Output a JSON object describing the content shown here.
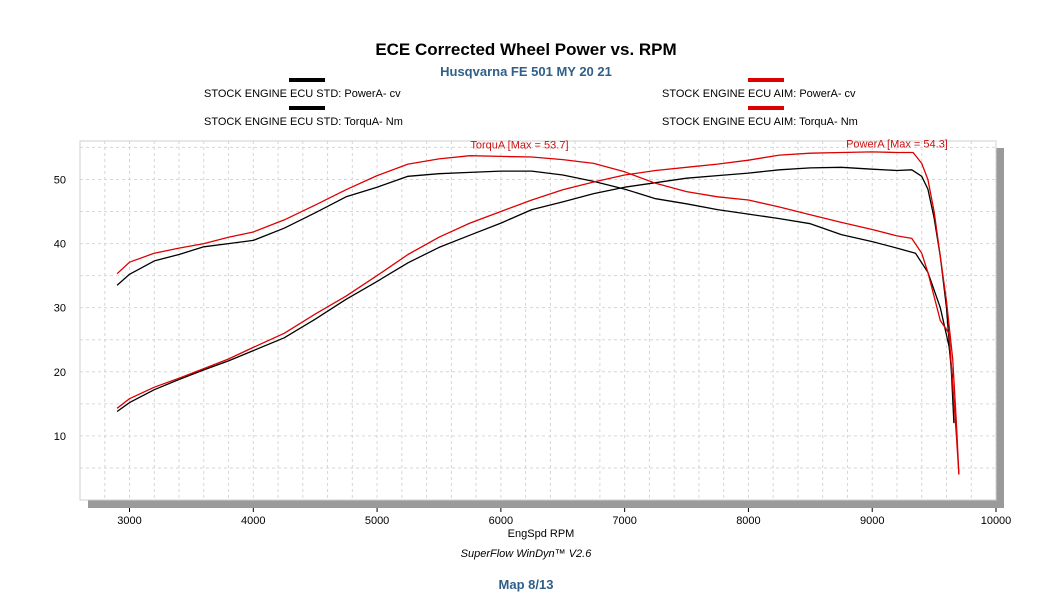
{
  "chart_data": {
    "type": "line",
    "title": "ECE Corrected Wheel Power vs. RPM",
    "subtitle": "Husqvarna FE 501 MY 20 21",
    "xlabel": "EngSpd  RPM",
    "ylabel": "",
    "xlim": [
      2600,
      10000
    ],
    "ylim": [
      0,
      56
    ],
    "x_ticks": [
      "3000",
      "4000",
      "5000",
      "6000",
      "7000",
      "8000",
      "9000",
      "10000"
    ],
    "y_ticks": [
      "10",
      "20",
      "30",
      "40",
      "50"
    ],
    "grid": true,
    "footer": "SuperFlow WinDyn™ V2.6",
    "map_label": "Map 8/13",
    "legend": [
      {
        "label": "STOCK ENGINE ECU STD: PowerA- cv",
        "color": "#000000"
      },
      {
        "label": "STOCK ENGINE ECU STD: TorquA- Nm",
        "color": "#000000"
      },
      {
        "label": "STOCK ENGINE ECU AIM: PowerA- cv",
        "color": "#dd0000"
      },
      {
        "label": "STOCK ENGINE ECU AIM: TorquA- Nm",
        "color": "#dd0000"
      }
    ],
    "annotations": [
      {
        "text": "TorquA [Max = 53.7]",
        "x": 6150,
        "y": 54.8,
        "color": "#cc1111"
      },
      {
        "text": "PowerA [Max = 54.3]",
        "x": 9200,
        "y": 55.0,
        "color": "#cc1111"
      }
    ],
    "series": [
      {
        "name": "STOCK ENGINE ECU STD: PowerA- cv",
        "color": "#000000",
        "points": [
          [
            2900,
            13.8
          ],
          [
            3000,
            15.2
          ],
          [
            3200,
            17.2
          ],
          [
            3400,
            18.8
          ],
          [
            3600,
            20.3
          ],
          [
            3800,
            21.7
          ],
          [
            4000,
            23.3
          ],
          [
            4250,
            25.3
          ],
          [
            4500,
            28.2
          ],
          [
            4750,
            31.3
          ],
          [
            5000,
            34.1
          ],
          [
            5250,
            37.0
          ],
          [
            5500,
            39.4
          ],
          [
            5750,
            41.3
          ],
          [
            6000,
            43.2
          ],
          [
            6250,
            45.3
          ],
          [
            6500,
            46.5
          ],
          [
            6750,
            47.8
          ],
          [
            7000,
            48.8
          ],
          [
            7250,
            49.5
          ],
          [
            7500,
            50.2
          ],
          [
            7750,
            50.6
          ],
          [
            8000,
            51.0
          ],
          [
            8250,
            51.5
          ],
          [
            8500,
            51.8
          ],
          [
            8750,
            51.9
          ],
          [
            9000,
            51.6
          ],
          [
            9200,
            51.4
          ],
          [
            9320,
            51.5
          ],
          [
            9400,
            50.5
          ],
          [
            9450,
            48.5
          ],
          [
            9500,
            44.0
          ],
          [
            9550,
            38.0
          ],
          [
            9600,
            30.0
          ],
          [
            9640,
            20.0
          ],
          [
            9660,
            12.0
          ]
        ]
      },
      {
        "name": "STOCK ENGINE ECU STD: TorquA- Nm",
        "color": "#000000",
        "points": [
          [
            2900,
            33.5
          ],
          [
            3000,
            35.2
          ],
          [
            3200,
            37.3
          ],
          [
            3400,
            38.3
          ],
          [
            3600,
            39.5
          ],
          [
            3800,
            40.0
          ],
          [
            4000,
            40.5
          ],
          [
            4250,
            42.4
          ],
          [
            4500,
            44.8
          ],
          [
            4750,
            47.3
          ],
          [
            5000,
            48.8
          ],
          [
            5250,
            50.5
          ],
          [
            5500,
            50.9
          ],
          [
            5750,
            51.1
          ],
          [
            6000,
            51.3
          ],
          [
            6250,
            51.3
          ],
          [
            6500,
            50.7
          ],
          [
            6750,
            49.7
          ],
          [
            7000,
            48.5
          ],
          [
            7250,
            47.0
          ],
          [
            7500,
            46.2
          ],
          [
            7750,
            45.3
          ],
          [
            8000,
            44.6
          ],
          [
            8250,
            43.9
          ],
          [
            8500,
            43.1
          ],
          [
            8750,
            41.4
          ],
          [
            9000,
            40.3
          ],
          [
            9200,
            39.3
          ],
          [
            9350,
            38.5
          ],
          [
            9450,
            35.5
          ],
          [
            9550,
            30.0
          ],
          [
            9620,
            24.0
          ],
          [
            9650,
            19.0
          ]
        ]
      },
      {
        "name": "STOCK ENGINE ECU AIM: PowerA- cv",
        "color": "#dd0000",
        "points": [
          [
            2900,
            14.3
          ],
          [
            3000,
            15.8
          ],
          [
            3200,
            17.6
          ],
          [
            3400,
            19.0
          ],
          [
            3600,
            20.5
          ],
          [
            3800,
            22.0
          ],
          [
            4000,
            23.8
          ],
          [
            4250,
            26.0
          ],
          [
            4500,
            29.0
          ],
          [
            4750,
            31.8
          ],
          [
            5000,
            35.0
          ],
          [
            5250,
            38.3
          ],
          [
            5500,
            41.0
          ],
          [
            5750,
            43.2
          ],
          [
            6000,
            45.0
          ],
          [
            6250,
            46.8
          ],
          [
            6500,
            48.4
          ],
          [
            6750,
            49.6
          ],
          [
            7000,
            50.7
          ],
          [
            7250,
            51.4
          ],
          [
            7500,
            51.9
          ],
          [
            7750,
            52.4
          ],
          [
            8000,
            53.0
          ],
          [
            8250,
            53.8
          ],
          [
            8500,
            54.1
          ],
          [
            8750,
            54.2
          ],
          [
            9000,
            54.3
          ],
          [
            9200,
            54.2
          ],
          [
            9330,
            54.2
          ],
          [
            9400,
            52.5
          ],
          [
            9450,
            50.0
          ],
          [
            9500,
            45.0
          ],
          [
            9550,
            38.0
          ],
          [
            9600,
            31.0
          ],
          [
            9650,
            22.0
          ],
          [
            9680,
            12.0
          ],
          [
            9700,
            4.0
          ]
        ]
      },
      {
        "name": "STOCK ENGINE ECU AIM: TorquA- Nm",
        "color": "#dd0000",
        "points": [
          [
            2900,
            35.3
          ],
          [
            3000,
            37.1
          ],
          [
            3200,
            38.5
          ],
          [
            3400,
            39.3
          ],
          [
            3600,
            40.0
          ],
          [
            3800,
            41.0
          ],
          [
            4000,
            41.8
          ],
          [
            4250,
            43.7
          ],
          [
            4500,
            46.0
          ],
          [
            4750,
            48.4
          ],
          [
            5000,
            50.6
          ],
          [
            5250,
            52.4
          ],
          [
            5500,
            53.2
          ],
          [
            5750,
            53.7
          ],
          [
            6000,
            53.6
          ],
          [
            6250,
            53.5
          ],
          [
            6500,
            53.1
          ],
          [
            6750,
            52.5
          ],
          [
            7000,
            51.2
          ],
          [
            7250,
            49.4
          ],
          [
            7500,
            48.1
          ],
          [
            7750,
            47.3
          ],
          [
            8000,
            46.8
          ],
          [
            8250,
            45.7
          ],
          [
            8500,
            44.5
          ],
          [
            8750,
            43.3
          ],
          [
            9000,
            42.2
          ],
          [
            9200,
            41.2
          ],
          [
            9320,
            40.8
          ],
          [
            9400,
            38.5
          ],
          [
            9450,
            35.5
          ],
          [
            9550,
            28.0
          ],
          [
            9620,
            26.0
          ],
          [
            9650,
            18.0
          ],
          [
            9680,
            10.0
          ],
          [
            9700,
            4.0
          ]
        ]
      }
    ]
  }
}
